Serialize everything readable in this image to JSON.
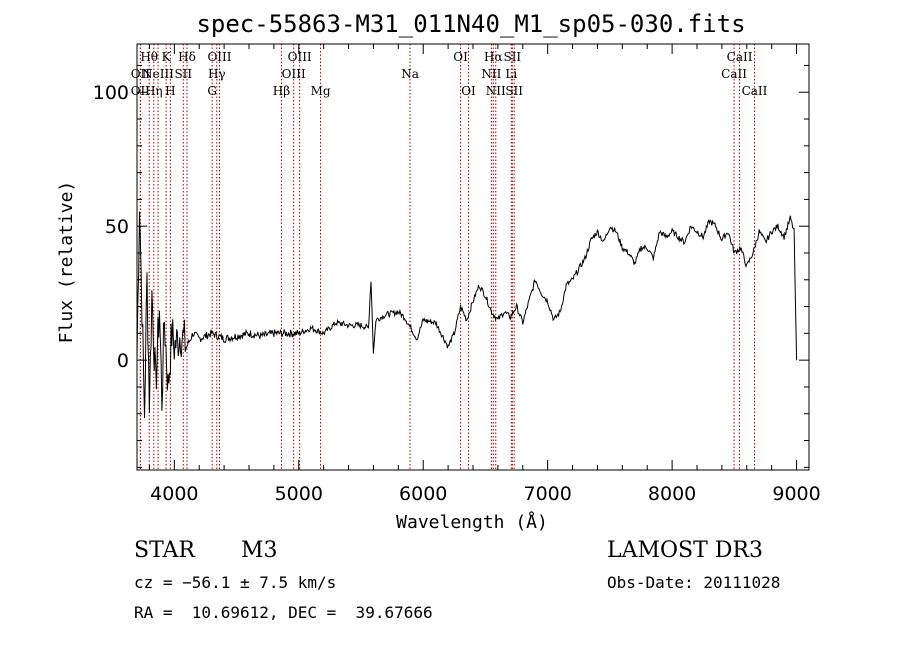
{
  "chart_data": {
    "type": "line",
    "title": "spec-55863-M31_011N40_M1_sp05-030.fits",
    "xlabel": "Wavelength (Å)",
    "ylabel": "Flux (relative)",
    "xlim": [
      3700,
      9100
    ],
    "ylim": [
      -41,
      118
    ],
    "x_ticks": [
      {
        "value": 4000,
        "label": "4000"
      },
      {
        "value": 5000,
        "label": "5000"
      },
      {
        "value": 6000,
        "label": "6000"
      },
      {
        "value": 7000,
        "label": "7000"
      },
      {
        "value": 8000,
        "label": "8000"
      },
      {
        "value": 9000,
        "label": "9000"
      }
    ],
    "y_ticks": [
      {
        "value": 0,
        "label": "0"
      },
      {
        "value": 50,
        "label": "50"
      },
      {
        "value": 100,
        "label": "100"
      }
    ],
    "series": [
      {
        "name": "spectrum",
        "x": [
          3700,
          3720,
          3740,
          3760,
          3780,
          3800,
          3820,
          3850,
          3880,
          3900,
          3920,
          3950,
          3980,
          4000,
          4050,
          4100,
          4150,
          4200,
          4300,
          4400,
          4500,
          4600,
          4700,
          4800,
          4900,
          5000,
          5100,
          5200,
          5300,
          5400,
          5500,
          5560,
          5580,
          5600,
          5620,
          5700,
          5800,
          5850,
          5900,
          5950,
          6000,
          6100,
          6200,
          6250,
          6300,
          6350,
          6400,
          6450,
          6500,
          6550,
          6600,
          6650,
          6700,
          6750,
          6800,
          6850,
          6900,
          6950,
          7000,
          7050,
          7100,
          7150,
          7200,
          7250,
          7300,
          7350,
          7400,
          7450,
          7500,
          7550,
          7600,
          7650,
          7700,
          7750,
          7800,
          7850,
          7900,
          7950,
          8000,
          8050,
          8100,
          8150,
          8200,
          8250,
          8300,
          8350,
          8400,
          8450,
          8500,
          8550,
          8600,
          8650,
          8700,
          8750,
          8800,
          8850,
          8900,
          8950,
          8980,
          9000
        ],
        "y": [
          0,
          60,
          20,
          -20,
          30,
          -15,
          25,
          -10,
          20,
          -15,
          15,
          -10,
          10,
          5,
          10,
          5,
          10,
          8,
          10,
          8,
          9,
          10,
          9,
          10,
          10,
          10,
          12,
          10,
          14,
          13,
          13,
          12,
          30,
          3,
          15,
          17,
          18,
          16,
          12,
          8,
          15,
          14,
          5,
          10,
          20,
          15,
          22,
          28,
          24,
          18,
          15,
          18,
          16,
          20,
          14,
          22,
          30,
          25,
          22,
          15,
          18,
          28,
          30,
          34,
          38,
          45,
          48,
          44,
          50,
          48,
          42,
          40,
          36,
          42,
          42,
          38,
          48,
          46,
          48,
          46,
          44,
          50,
          48,
          46,
          52,
          50,
          45,
          48,
          40,
          42,
          35,
          40,
          48,
          44,
          48,
          50,
          46,
          53,
          48,
          0
        ]
      }
    ],
    "emission_lines": [
      {
        "x": 3727,
        "label": "OII",
        "row": 1
      },
      {
        "x": 3727,
        "label": "OII",
        "row": 2
      },
      {
        "x": 3798,
        "label": "Hθ",
        "row": 0
      },
      {
        "x": 3835,
        "label": "Hη",
        "row": 2
      },
      {
        "x": 3869,
        "label": "NeIII",
        "row": 1
      },
      {
        "x": 3934,
        "label": "K",
        "row": 0
      },
      {
        "x": 3968,
        "label": "H",
        "row": 2
      },
      {
        "x": 4072,
        "label": "SII",
        "row": 1
      },
      {
        "x": 4102,
        "label": "Hδ",
        "row": 0
      },
      {
        "x": 4304,
        "label": "G",
        "row": 2
      },
      {
        "x": 4341,
        "label": "Hγ",
        "row": 1
      },
      {
        "x": 4363,
        "label": "OIII",
        "row": 0
      },
      {
        "x": 4861,
        "label": "Hβ",
        "row": 2
      },
      {
        "x": 4959,
        "label": "OIII",
        "row": 1
      },
      {
        "x": 5007,
        "label": "OIII",
        "row": 0
      },
      {
        "x": 5175,
        "label": "Mg",
        "row": 2
      },
      {
        "x": 5894,
        "label": "Na",
        "row": 1
      },
      {
        "x": 6300,
        "label": "OI",
        "row": 0
      },
      {
        "x": 6364,
        "label": "OI",
        "row": 2
      },
      {
        "x": 6548,
        "label": "NII",
        "row": 1
      },
      {
        "x": 6563,
        "label": "Hα",
        "row": 0
      },
      {
        "x": 6583,
        "label": "NII",
        "row": 2
      },
      {
        "x": 6708,
        "label": "Li",
        "row": 1
      },
      {
        "x": 6716,
        "label": "SII",
        "row": 0
      },
      {
        "x": 6731,
        "label": "SII",
        "row": 2
      },
      {
        "x": 8498,
        "label": "CaII",
        "row": 1
      },
      {
        "x": 8542,
        "label": "CaII",
        "row": 0
      },
      {
        "x": 8662,
        "label": "CaII",
        "row": 2
      }
    ]
  },
  "info": {
    "class": "STAR",
    "subclass": "M3",
    "survey": "LAMOST DR3",
    "redshift": "cz = −56.1 ± 7.5 km/s",
    "obs_date": "Obs-Date: 20111028",
    "coords": "RA =  10.69612, DEC =  39.67666"
  },
  "colors": {
    "line_marker": "#b00000",
    "spectrum": "#000000"
  }
}
